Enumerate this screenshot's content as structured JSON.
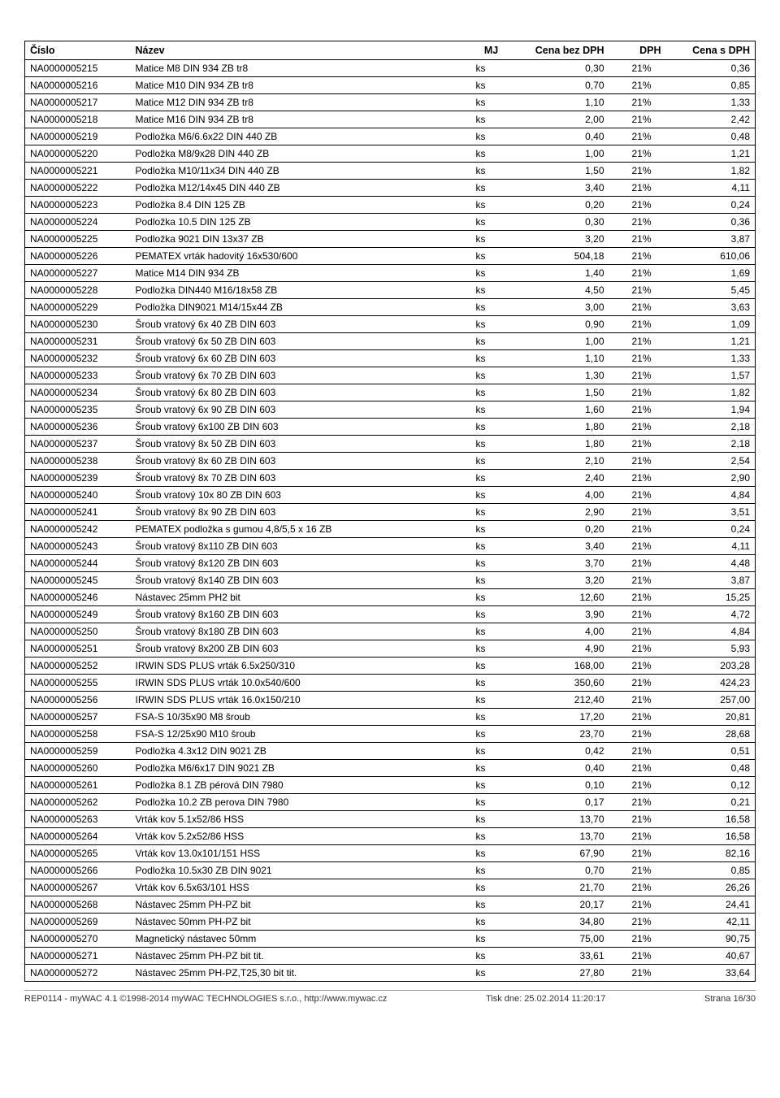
{
  "headers": {
    "cislo": "Číslo",
    "nazev": "Název",
    "mj": "MJ",
    "cenabez": "Cena bez DPH",
    "dph": "DPH",
    "cenas": "Cena s DPH"
  },
  "rows": [
    [
      "NA0000005215",
      "Matice M8 DIN 934 ZB tr8",
      "ks",
      "0,30",
      "21%",
      "0,36"
    ],
    [
      "NA0000005216",
      "Matice M10 DIN 934 ZB tr8",
      "ks",
      "0,70",
      "21%",
      "0,85"
    ],
    [
      "NA0000005217",
      "Matice M12 DIN 934 ZB tr8",
      "ks",
      "1,10",
      "21%",
      "1,33"
    ],
    [
      "NA0000005218",
      "Matice M16 DIN 934 ZB tr8",
      "ks",
      "2,00",
      "21%",
      "2,42"
    ],
    [
      "NA0000005219",
      "Podložka M6/6.6x22 DIN 440 ZB",
      "ks",
      "0,40",
      "21%",
      "0,48"
    ],
    [
      "NA0000005220",
      "Podložka M8/9x28 DIN 440 ZB",
      "ks",
      "1,00",
      "21%",
      "1,21"
    ],
    [
      "NA0000005221",
      "Podložka M10/11x34 DIN 440 ZB",
      "ks",
      "1,50",
      "21%",
      "1,82"
    ],
    [
      "NA0000005222",
      "Podložka M12/14x45 DIN 440 ZB",
      "ks",
      "3,40",
      "21%",
      "4,11"
    ],
    [
      "NA0000005223",
      "Podložka 8.4 DIN 125 ZB",
      "ks",
      "0,20",
      "21%",
      "0,24"
    ],
    [
      "NA0000005224",
      "Podložka 10.5 DIN 125 ZB",
      "ks",
      "0,30",
      "21%",
      "0,36"
    ],
    [
      "NA0000005225",
      "Podložka 9021 DIN 13x37 ZB",
      "ks",
      "3,20",
      "21%",
      "3,87"
    ],
    [
      "NA0000005226",
      "PEMATEX vrták hadovitý 16x530/600",
      "ks",
      "504,18",
      "21%",
      "610,06"
    ],
    [
      "NA0000005227",
      "Matice M14 DIN 934 ZB",
      "ks",
      "1,40",
      "21%",
      "1,69"
    ],
    [
      "NA0000005228",
      "Podložka DIN440 M16/18x58 ZB",
      "ks",
      "4,50",
      "21%",
      "5,45"
    ],
    [
      "NA0000005229",
      "Podložka DIN9021 M14/15x44 ZB",
      "ks",
      "3,00",
      "21%",
      "3,63"
    ],
    [
      "NA0000005230",
      "Šroub vratový 6x 40 ZB DIN 603",
      "ks",
      "0,90",
      "21%",
      "1,09"
    ],
    [
      "NA0000005231",
      "Šroub vratový 6x 50 ZB DIN 603",
      "ks",
      "1,00",
      "21%",
      "1,21"
    ],
    [
      "NA0000005232",
      "Šroub vratový 6x 60 ZB DIN 603",
      "ks",
      "1,10",
      "21%",
      "1,33"
    ],
    [
      "NA0000005233",
      "Šroub vratový 6x 70 ZB DIN 603",
      "ks",
      "1,30",
      "21%",
      "1,57"
    ],
    [
      "NA0000005234",
      "Šroub vratový 6x 80 ZB DIN 603",
      "ks",
      "1,50",
      "21%",
      "1,82"
    ],
    [
      "NA0000005235",
      "Šroub vratový 6x 90 ZB DIN 603",
      "ks",
      "1,60",
      "21%",
      "1,94"
    ],
    [
      "NA0000005236",
      "Šroub vratový 6x100 ZB DIN 603",
      "ks",
      "1,80",
      "21%",
      "2,18"
    ],
    [
      "NA0000005237",
      "Šroub vratový 8x 50 ZB DIN 603",
      "ks",
      "1,80",
      "21%",
      "2,18"
    ],
    [
      "NA0000005238",
      "Šroub vratový 8x 60 ZB DIN 603",
      "ks",
      "2,10",
      "21%",
      "2,54"
    ],
    [
      "NA0000005239",
      "Šroub vratový 8x 70 ZB DIN 603",
      "ks",
      "2,40",
      "21%",
      "2,90"
    ],
    [
      "NA0000005240",
      "Šroub vratový 10x 80 ZB DIN 603",
      "ks",
      "4,00",
      "21%",
      "4,84"
    ],
    [
      "NA0000005241",
      "Šroub vratový 8x 90 ZB DIN 603",
      "ks",
      "2,90",
      "21%",
      "3,51"
    ],
    [
      "NA0000005242",
      "PEMATEX podložka s gumou 4,8/5,5 x 16 ZB",
      "ks",
      "0,20",
      "21%",
      "0,24"
    ],
    [
      "NA0000005243",
      "Šroub vratový 8x110 ZB DIN 603",
      "ks",
      "3,40",
      "21%",
      "4,11"
    ],
    [
      "NA0000005244",
      "Šroub vratový 8x120 ZB DIN 603",
      "ks",
      "3,70",
      "21%",
      "4,48"
    ],
    [
      "NA0000005245",
      "Šroub vratový 8x140 ZB DIN 603",
      "ks",
      "3,20",
      "21%",
      "3,87"
    ],
    [
      "NA0000005246",
      "Nástavec 25mm PH2 bit",
      "ks",
      "12,60",
      "21%",
      "15,25"
    ],
    [
      "NA0000005249",
      "Šroub vratový 8x160 ZB DIN 603",
      "ks",
      "3,90",
      "21%",
      "4,72"
    ],
    [
      "NA0000005250",
      "Šroub vratový 8x180 ZB DIN 603",
      "ks",
      "4,00",
      "21%",
      "4,84"
    ],
    [
      "NA0000005251",
      "Šroub vratový 8x200 ZB DIN 603",
      "ks",
      "4,90",
      "21%",
      "5,93"
    ],
    [
      "NA0000005252",
      "IRWIN SDS PLUS vrták 6.5x250/310",
      "ks",
      "168,00",
      "21%",
      "203,28"
    ],
    [
      "NA0000005255",
      "IRWIN SDS PLUS vrták 10.0x540/600",
      "ks",
      "350,60",
      "21%",
      "424,23"
    ],
    [
      "NA0000005256",
      "IRWIN SDS PLUS vrták 16.0x150/210",
      "ks",
      "212,40",
      "21%",
      "257,00"
    ],
    [
      "NA0000005257",
      "FSA-S 10/35x90 M8 šroub",
      "ks",
      "17,20",
      "21%",
      "20,81"
    ],
    [
      "NA0000005258",
      "FSA-S 12/25x90 M10 šroub",
      "ks",
      "23,70",
      "21%",
      "28,68"
    ],
    [
      "NA0000005259",
      "Podložka 4.3x12 DIN 9021 ZB",
      "ks",
      "0,42",
      "21%",
      "0,51"
    ],
    [
      "NA0000005260",
      "Podložka M6/6x17 DIN 9021 ZB",
      "ks",
      "0,40",
      "21%",
      "0,48"
    ],
    [
      "NA0000005261",
      "Podložka 8.1 ZB pérová DIN 7980",
      "ks",
      "0,10",
      "21%",
      "0,12"
    ],
    [
      "NA0000005262",
      "Podložka 10.2 ZB perova DIN 7980",
      "ks",
      "0,17",
      "21%",
      "0,21"
    ],
    [
      "NA0000005263",
      "Vrták kov 5.1x52/86 HSS",
      "ks",
      "13,70",
      "21%",
      "16,58"
    ],
    [
      "NA0000005264",
      "Vrták kov 5.2x52/86 HSS",
      "ks",
      "13,70",
      "21%",
      "16,58"
    ],
    [
      "NA0000005265",
      "Vrták kov 13.0x101/151 HSS",
      "ks",
      "67,90",
      "21%",
      "82,16"
    ],
    [
      "NA0000005266",
      "Podložka 10.5x30 ZB DIN 9021",
      "ks",
      "0,70",
      "21%",
      "0,85"
    ],
    [
      "NA0000005267",
      "Vrták kov 6.5x63/101 HSS",
      "ks",
      "21,70",
      "21%",
      "26,26"
    ],
    [
      "NA0000005268",
      "Nástavec 25mm PH-PZ bit",
      "ks",
      "20,17",
      "21%",
      "24,41"
    ],
    [
      "NA0000005269",
      "Nástavec 50mm PH-PZ bit",
      "ks",
      "34,80",
      "21%",
      "42,11"
    ],
    [
      "NA0000005270",
      "Magnetický nástavec 50mm",
      "ks",
      "75,00",
      "21%",
      "90,75"
    ],
    [
      "NA0000005271",
      "Nástavec 25mm PH-PZ bit tit.",
      "ks",
      "33,61",
      "21%",
      "40,67"
    ],
    [
      "NA0000005272",
      "Nástavec 25mm PH-PZ,T25,30 bit tit.",
      "ks",
      "27,80",
      "21%",
      "33,64"
    ]
  ],
  "footer": {
    "left": "REP0114 - myWAC 4.1 ©1998-2014 myWAC TECHNOLOGIES s.r.o., http://www.mywac.cz",
    "mid": "Tisk dne: 25.02.2014 11:20:17",
    "right": "Strana 16/30"
  }
}
